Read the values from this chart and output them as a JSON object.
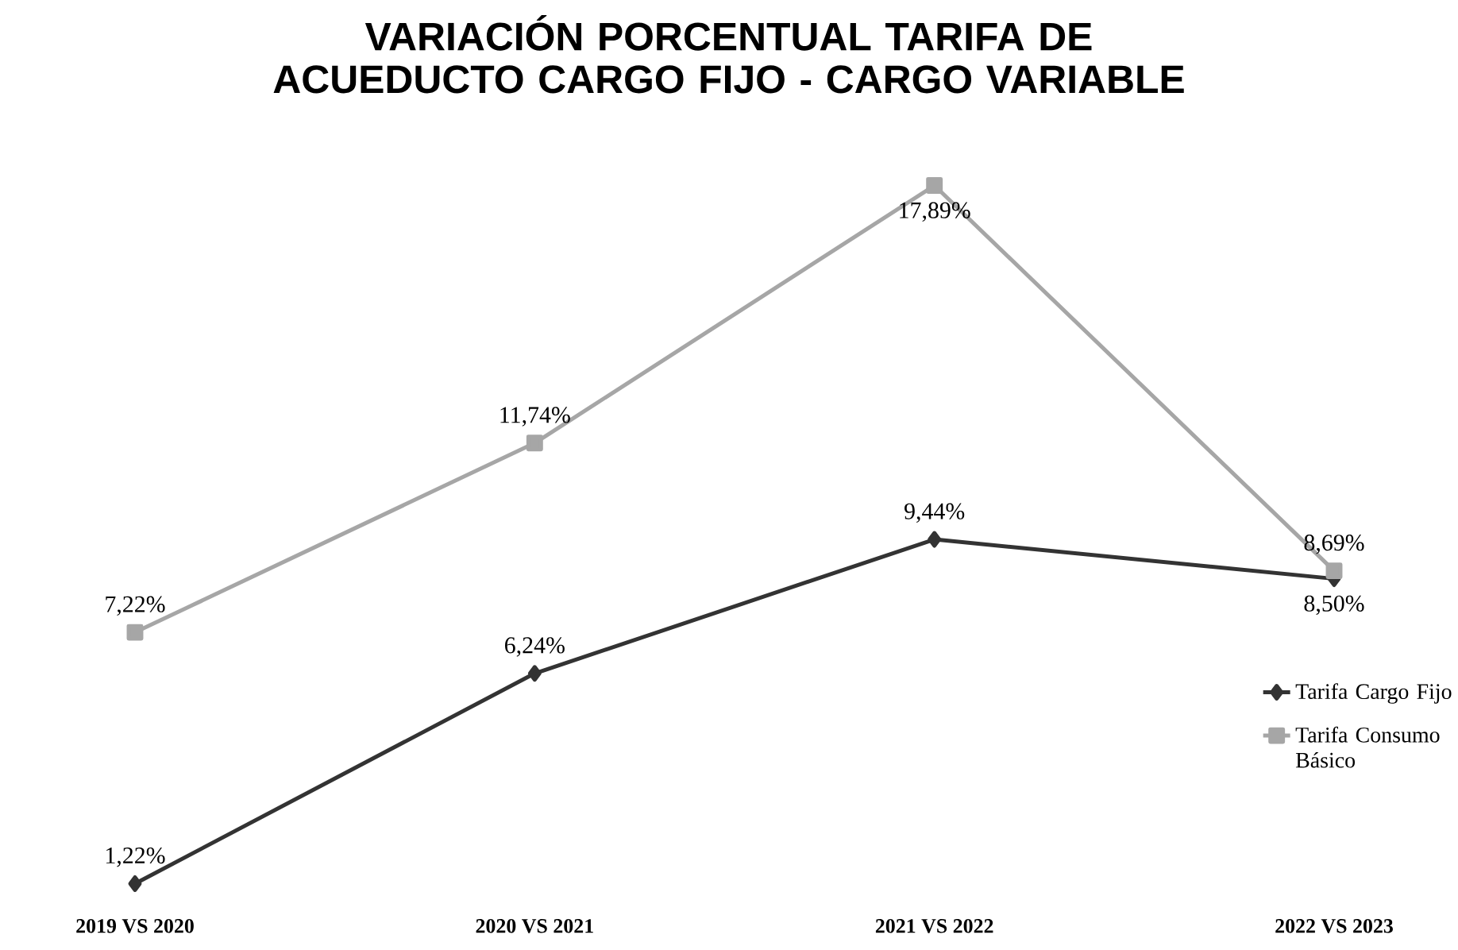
{
  "chart_data": {
    "type": "line",
    "title": "VARIACIÓN PORCENTUAL TARIFA DE ACUEDUCTO CARGO FIJO - CARGO VARIABLE",
    "categories": [
      "2019 VS 2020",
      "2020 VS 2021",
      "2021 VS 2022",
      "2022 VS 2023"
    ],
    "series": [
      {
        "name": "Tarifa Cargo Fijo",
        "color": "#333333",
        "marker": "diamond",
        "values": [
          1.22,
          6.24,
          9.44,
          8.5
        ],
        "value_labels": [
          "1,22%",
          "6,24%",
          "9,44%",
          "8,50%"
        ]
      },
      {
        "name": "Tarifa Consumo Básico",
        "color": "#a6a6a6",
        "marker": "square",
        "values": [
          7.22,
          11.74,
          17.89,
          8.69
        ],
        "value_labels": [
          "7,22%",
          "11,74%",
          "17,89%",
          "8,69%"
        ]
      }
    ],
    "legend": "right"
  }
}
